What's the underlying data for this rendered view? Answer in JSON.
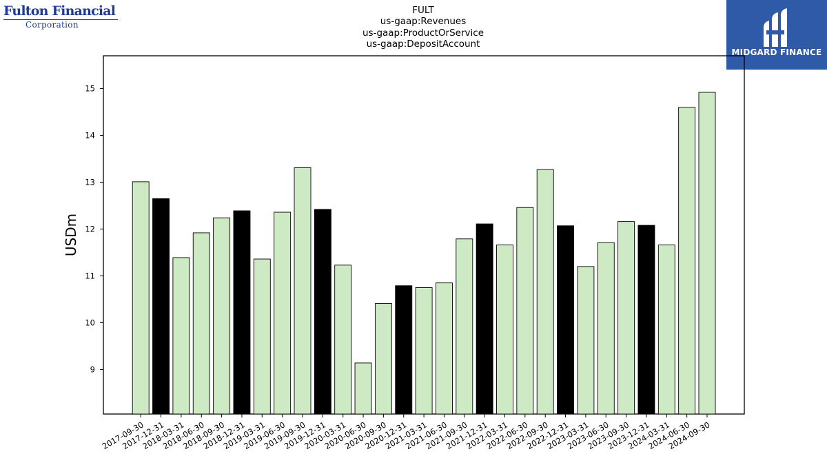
{
  "branding": {
    "left_logo_line1": "Fulton Financial",
    "left_logo_line2": "Corporation",
    "right_logo_text": "MIDGARD FINANCE"
  },
  "titles": [
    "FULT",
    "us-gaap:Revenues",
    "us-gaap:ProductOrService",
    "us-gaap:DepositAccount"
  ],
  "colors": {
    "bar_default": "#cdeac5",
    "bar_highlight": "#000000",
    "bar_edge": "#000000",
    "logo_blue": "#2f5aa8",
    "logo_text_blue": "#1f3a93"
  },
  "chart_data": {
    "type": "bar",
    "ylabel": "USDm",
    "xlabel": "",
    "ylim": [
      8.05,
      15.7
    ],
    "yticks": [
      9,
      10,
      11,
      12,
      13,
      14,
      15
    ],
    "categories": [
      "2017-09-30",
      "2017-12-31",
      "2018-03-31",
      "2018-06-30",
      "2018-09-30",
      "2018-12-31",
      "2019-03-31",
      "2019-06-30",
      "2019-09-30",
      "2019-12-31",
      "2020-03-31",
      "2020-06-30",
      "2020-09-30",
      "2020-12-31",
      "2021-03-31",
      "2021-06-30",
      "2021-09-30",
      "2021-12-31",
      "2022-03-31",
      "2022-06-30",
      "2022-09-30",
      "2022-12-31",
      "2023-03-31",
      "2023-06-30",
      "2023-09-30",
      "2023-12-31",
      "2024-03-31",
      "2024-06-30",
      "2024-09-30"
    ],
    "values": [
      13.01,
      12.65,
      11.39,
      11.92,
      12.24,
      12.39,
      11.36,
      12.36,
      13.31,
      12.42,
      11.23,
      9.14,
      10.41,
      10.79,
      10.75,
      10.85,
      11.79,
      12.11,
      11.66,
      12.46,
      13.27,
      12.07,
      11.2,
      11.71,
      12.16,
      12.08,
      11.66,
      14.6,
      14.92
    ],
    "highlighted": [
      "2017-12-31",
      "2018-12-31",
      "2019-12-31",
      "2020-12-31",
      "2021-12-31",
      "2022-12-31",
      "2023-12-31"
    ],
    "grid": false,
    "legend": "none"
  }
}
